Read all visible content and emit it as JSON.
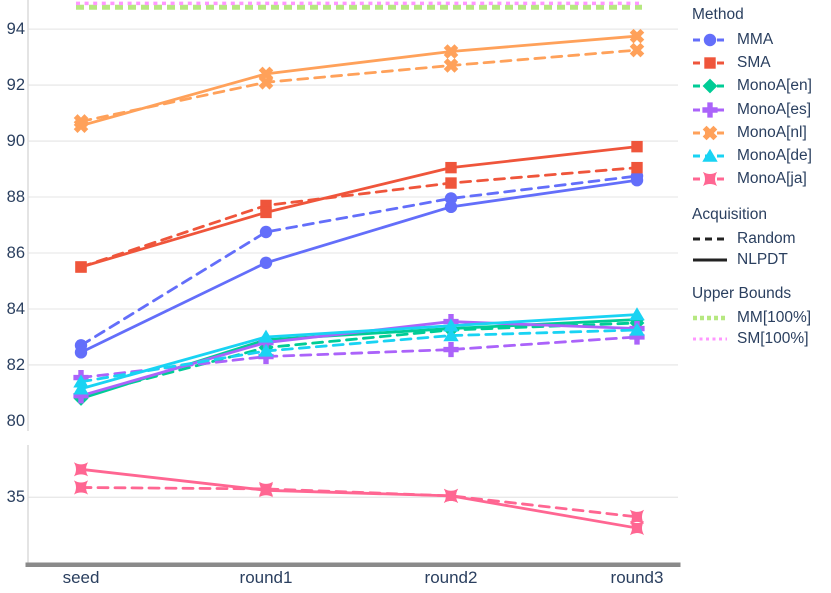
{
  "text_color": "#2a3f5f",
  "grid_color": "#e9e9e9",
  "spine_color": "#d9d9d9",
  "baseline_color": "#8a8a8a",
  "chart_data": {
    "type": "line",
    "categories": [
      "seed",
      "round1",
      "round2",
      "round3"
    ],
    "panels": [
      {
        "id": "top",
        "ylim": [
          79.64,
          95.04
        ],
        "yticks": [
          94,
          92,
          90,
          88,
          86,
          84,
          82,
          80
        ],
        "gridlines": [
          94,
          92,
          90,
          88,
          86,
          84,
          82
        ]
      },
      {
        "id": "bottom",
        "ylim": [
          32.65,
          36.87
        ],
        "yticks": [
          35
        ],
        "gridlines": [
          35
        ]
      }
    ],
    "upper_bounds": [
      {
        "name": "MM[100%]",
        "color": "#b6e880",
        "value": 94.78,
        "panel": "top"
      },
      {
        "name": "SM[100%]",
        "color": "#ff97ff",
        "value": 94.92,
        "panel": "top"
      }
    ],
    "series": [
      {
        "method": "MMA",
        "acquisition": "NLPDT",
        "color": "#636efa",
        "marker": "circle",
        "dash": "solid",
        "panel": "top",
        "values": [
          82.45,
          85.65,
          87.65,
          88.6
        ]
      },
      {
        "method": "MMA",
        "acquisition": "Random",
        "color": "#636efa",
        "marker": "circle",
        "dash": "dashed",
        "panel": "top",
        "values": [
          82.7,
          86.75,
          87.95,
          88.75
        ]
      },
      {
        "method": "SMA",
        "acquisition": "NLPDT",
        "color": "#ef553b",
        "marker": "square",
        "dash": "solid",
        "panel": "top",
        "values": [
          85.5,
          87.45,
          89.05,
          89.8
        ]
      },
      {
        "method": "SMA",
        "acquisition": "Random",
        "color": "#ef553b",
        "marker": "square",
        "dash": "dashed",
        "panel": "top",
        "values": [
          85.5,
          87.7,
          88.5,
          89.05
        ]
      },
      {
        "method": "MonoA[en]",
        "acquisition": "NLPDT",
        "color": "#00cc96",
        "marker": "diamond",
        "dash": "solid",
        "panel": "top",
        "values": [
          80.8,
          82.9,
          83.3,
          83.62
        ]
      },
      {
        "method": "MonoA[en]",
        "acquisition": "Random",
        "color": "#00cc96",
        "marker": "diamond",
        "dash": "dashed",
        "panel": "top",
        "values": [
          80.9,
          82.62,
          83.25,
          83.5
        ]
      },
      {
        "method": "MonoA[es]",
        "acquisition": "NLPDT",
        "color": "#ab63fa",
        "marker": "cross",
        "dash": "solid",
        "panel": "top",
        "values": [
          80.9,
          82.8,
          83.55,
          83.3
        ]
      },
      {
        "method": "MonoA[es]",
        "acquisition": "Random",
        "color": "#ab63fa",
        "marker": "cross",
        "dash": "dashed",
        "panel": "top",
        "values": [
          81.55,
          82.3,
          82.55,
          83.0
        ]
      },
      {
        "method": "MonoA[nl]",
        "acquisition": "NLPDT",
        "color": "#ffa15a",
        "marker": "x",
        "dash": "solid",
        "panel": "top",
        "values": [
          90.55,
          92.4,
          93.2,
          93.75
        ]
      },
      {
        "method": "MonoA[nl]",
        "acquisition": "Random",
        "color": "#ffa15a",
        "marker": "x",
        "dash": "dashed",
        "panel": "top",
        "values": [
          90.7,
          92.1,
          92.7,
          93.25
        ]
      },
      {
        "method": "MonoA[de]",
        "acquisition": "NLPDT",
        "color": "#19d3f3",
        "marker": "triangle-up",
        "dash": "solid",
        "panel": "top",
        "values": [
          81.15,
          83.0,
          83.4,
          83.8
        ]
      },
      {
        "method": "MonoA[de]",
        "acquisition": "Random",
        "color": "#19d3f3",
        "marker": "triangle-up",
        "dash": "dashed",
        "panel": "top",
        "values": [
          81.4,
          82.5,
          83.05,
          83.25
        ]
      },
      {
        "method": "MonoA[ja]",
        "acquisition": "NLPDT",
        "color": "#ff6692",
        "marker": "star-square",
        "dash": "solid",
        "panel": "bottom",
        "values": [
          36.0,
          35.25,
          35.05,
          33.9
        ]
      },
      {
        "method": "MonoA[ja]",
        "acquisition": "Random",
        "color": "#ff6692",
        "marker": "star-square",
        "dash": "dashed",
        "panel": "bottom",
        "values": [
          35.35,
          35.3,
          35.05,
          34.3
        ]
      }
    ]
  },
  "legend": {
    "sections": [
      {
        "title": "Method",
        "items": [
          {
            "label": "MMA",
            "color": "#636efa",
            "marker": "circle",
            "line": "dashed"
          },
          {
            "label": "SMA",
            "color": "#ef553b",
            "marker": "square",
            "line": "dashed"
          },
          {
            "label": "MonoA[en]",
            "color": "#00cc96",
            "marker": "diamond",
            "line": "dashed"
          },
          {
            "label": "MonoA[es]",
            "color": "#ab63fa",
            "marker": "cross",
            "line": "dashed"
          },
          {
            "label": "MonoA[nl]",
            "color": "#ffa15a",
            "marker": "x",
            "line": "dashed"
          },
          {
            "label": "MonoA[de]",
            "color": "#19d3f3",
            "marker": "triangle-up",
            "line": "dashed"
          },
          {
            "label": "MonoA[ja]",
            "color": "#ff6692",
            "marker": "star-square",
            "line": "dashed"
          }
        ]
      },
      {
        "title": "Acquisition",
        "items": [
          {
            "label": "Random",
            "color": "#222222",
            "marker": "none",
            "line": "dashed"
          },
          {
            "label": "NLPDT",
            "color": "#222222",
            "marker": "none",
            "line": "solid"
          }
        ]
      },
      {
        "title": "Upper Bounds",
        "items": [
          {
            "label": "MM[100%]",
            "color": "#b6e880",
            "marker": "none",
            "line": "dotted-thick"
          },
          {
            "label": "SM[100%]",
            "color": "#ff97ff",
            "marker": "none",
            "line": "dotted"
          }
        ]
      }
    ]
  }
}
